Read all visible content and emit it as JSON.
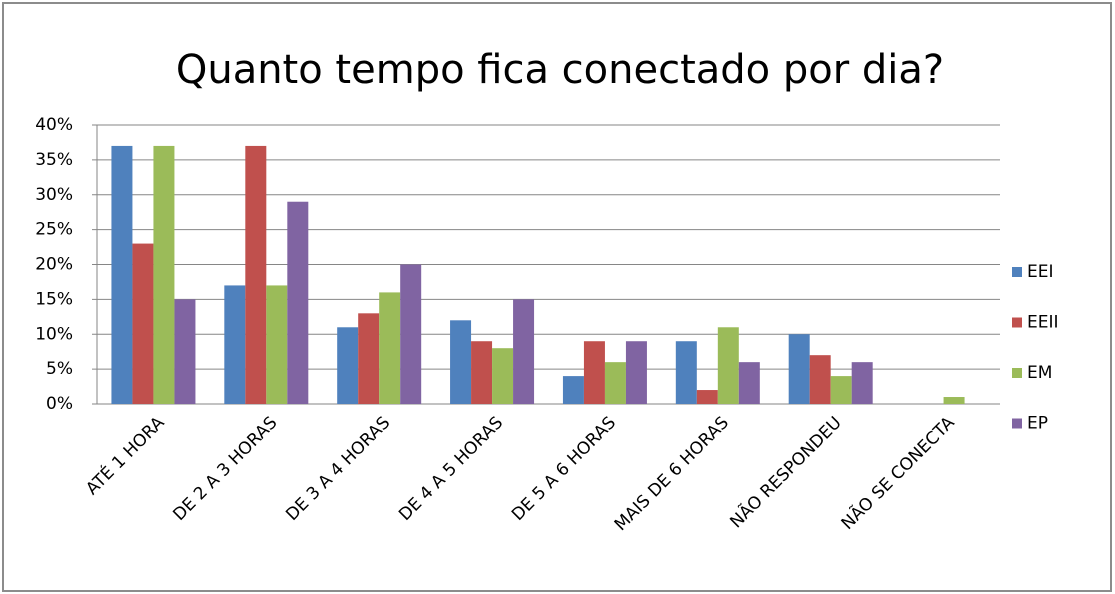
{
  "chart_data": {
    "type": "bar",
    "title": "Quanto tempo fica conectado por dia?",
    "categories": [
      "ATÉ 1 HORA",
      "DE 2 A 3 HORAS",
      "DE 3 A 4 HORAS",
      "DE 4 A 5 HORAS",
      "DE 5 A 6 HORAS",
      "MAIS DE 6 HORAS",
      "NÃO RESPONDEU",
      "NÃO SE CONECTA"
    ],
    "series": [
      {
        "name": "EEI",
        "color": "#4f81bd",
        "values": [
          37,
          17,
          11,
          12,
          4,
          9,
          10,
          0
        ]
      },
      {
        "name": "EEII",
        "color": "#c0504d",
        "values": [
          23,
          37,
          13,
          9,
          9,
          2,
          7,
          0
        ]
      },
      {
        "name": "EM",
        "color": "#9bbb59",
        "values": [
          37,
          17,
          16,
          8,
          6,
          11,
          4,
          1
        ]
      },
      {
        "name": "EP",
        "color": "#8064a2",
        "values": [
          15,
          29,
          20,
          15,
          9,
          6,
          6,
          0
        ]
      }
    ],
    "ylim": [
      0,
      40
    ],
    "yticks": [
      {
        "value": 0,
        "label": "0%"
      },
      {
        "value": 5,
        "label": "5%"
      },
      {
        "value": 10,
        "label": "10%"
      },
      {
        "value": 15,
        "label": "15%"
      },
      {
        "value": 20,
        "label": "20%"
      },
      {
        "value": 25,
        "label": "25%"
      },
      {
        "value": 30,
        "label": "30%"
      },
      {
        "value": 35,
        "label": "35%"
      },
      {
        "value": 40,
        "label": "40%"
      }
    ],
    "grid": true,
    "legend": "right"
  }
}
